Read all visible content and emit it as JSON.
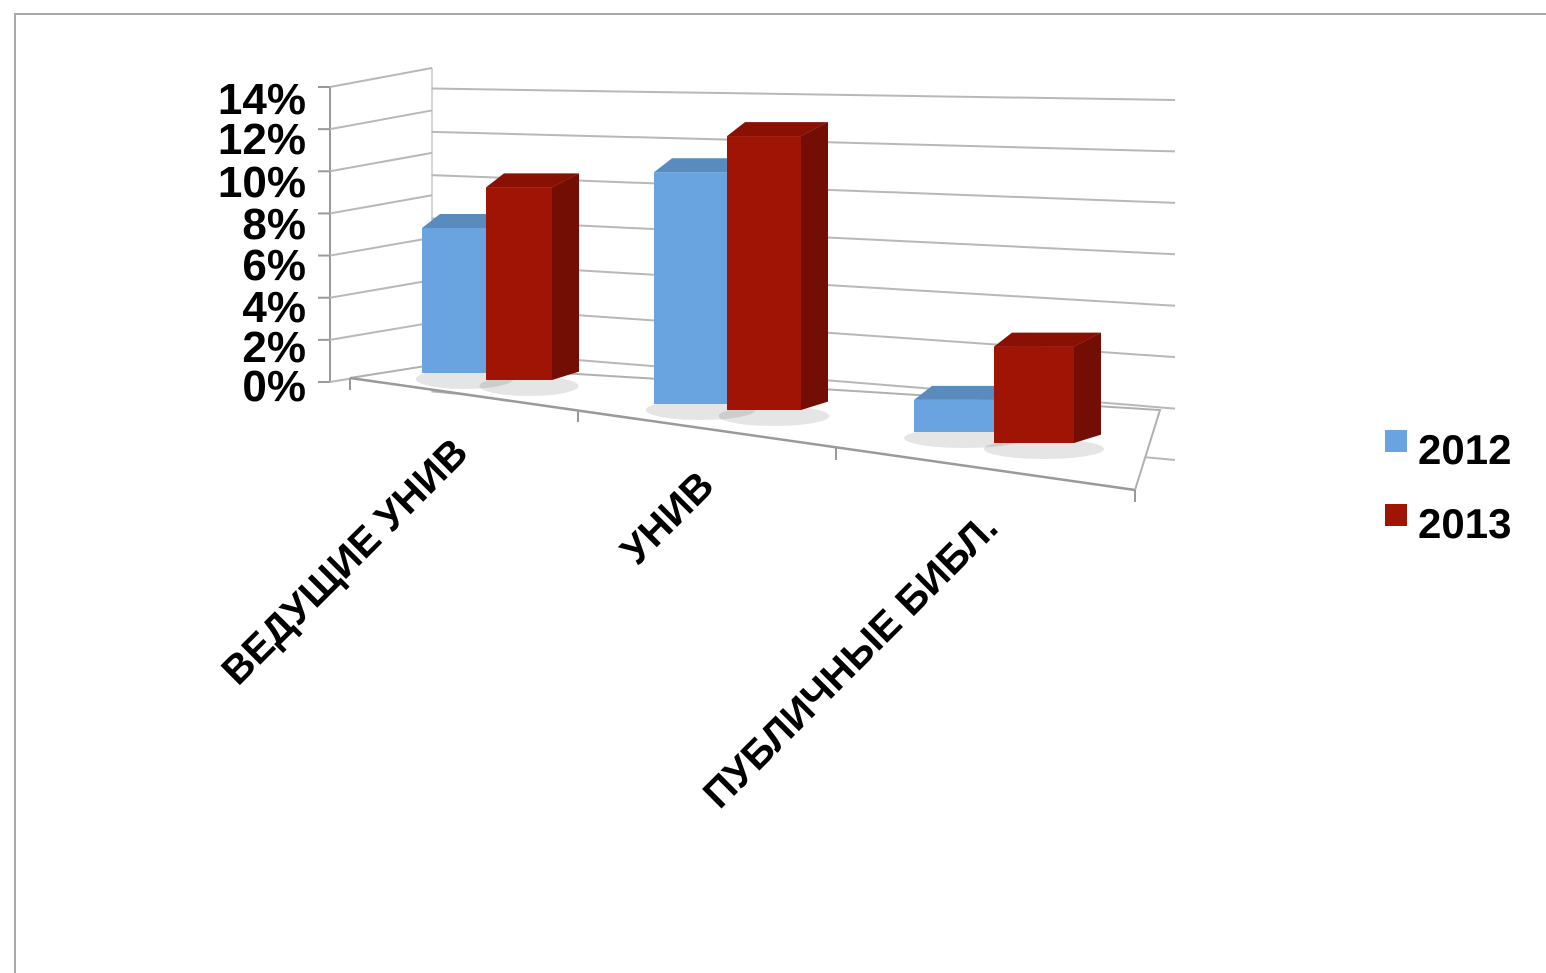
{
  "chart_data": {
    "type": "bar",
    "style": "3d-clustered-column",
    "categories": [
      "ВЕДУЩИЕ УНИВ",
      "УНИВ",
      "ПУБЛИЧНЫЕ БИБЛ."
    ],
    "series": [
      {
        "name": "2012",
        "values": [
          0.07,
          0.11,
          0.015
        ],
        "color": "#6aa4e0"
      },
      {
        "name": "2013",
        "values": [
          0.093,
          0.13,
          0.045
        ],
        "color": "#a01405"
      }
    ],
    "yticks": [
      "0%",
      "2%",
      "4%",
      "6%",
      "8%",
      "10%",
      "12%",
      "14%"
    ],
    "ylim": [
      0,
      0.14
    ],
    "grid": true,
    "legend": "right"
  }
}
